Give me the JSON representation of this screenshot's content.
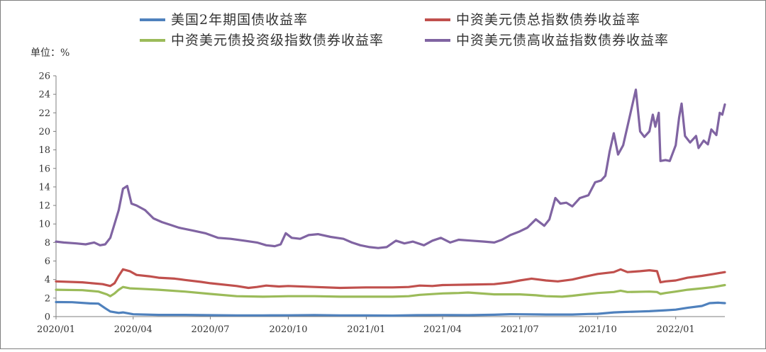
{
  "chart_data": {
    "type": "line",
    "unit_label": "单位：%",
    "ylim": [
      0,
      26
    ],
    "y_ticks": [
      "0",
      "2",
      "4",
      "6",
      "8",
      "10",
      "12",
      "14",
      "16",
      "18",
      "20",
      "22",
      "24",
      "26"
    ],
    "x_ticks": [
      "2020/01",
      "2020/04",
      "2020/07",
      "2020/10",
      "2021/01",
      "2021/04",
      "2021/07",
      "2021/10",
      "2022/01"
    ],
    "x_range": [
      "2020-01-01",
      "2022-02-28"
    ],
    "grid": false,
    "legend_position": "top",
    "series": [
      {
        "name": "美国2年期国债收益率",
        "color": "#4F81BD",
        "points": [
          [
            "2020-01-01",
            1.57
          ],
          [
            "2020-01-20",
            1.55
          ],
          [
            "2020-02-10",
            1.42
          ],
          [
            "2020-02-20",
            1.4
          ],
          [
            "2020-02-28",
            0.9
          ],
          [
            "2020-03-05",
            0.55
          ],
          [
            "2020-03-15",
            0.4
          ],
          [
            "2020-03-20",
            0.45
          ],
          [
            "2020-04-01",
            0.25
          ],
          [
            "2020-05-01",
            0.18
          ],
          [
            "2020-06-01",
            0.18
          ],
          [
            "2020-07-01",
            0.15
          ],
          [
            "2020-08-01",
            0.13
          ],
          [
            "2020-09-01",
            0.13
          ],
          [
            "2020-10-01",
            0.14
          ],
          [
            "2020-11-01",
            0.17
          ],
          [
            "2020-12-01",
            0.13
          ],
          [
            "2021-01-01",
            0.12
          ],
          [
            "2021-02-01",
            0.11
          ],
          [
            "2021-03-01",
            0.15
          ],
          [
            "2021-04-01",
            0.17
          ],
          [
            "2021-05-01",
            0.15
          ],
          [
            "2021-06-01",
            0.2
          ],
          [
            "2021-06-20",
            0.26
          ],
          [
            "2021-07-01",
            0.25
          ],
          [
            "2021-08-01",
            0.22
          ],
          [
            "2021-09-01",
            0.22
          ],
          [
            "2021-09-20",
            0.28
          ],
          [
            "2021-10-01",
            0.3
          ],
          [
            "2021-10-20",
            0.45
          ],
          [
            "2021-11-01",
            0.5
          ],
          [
            "2021-11-20",
            0.55
          ],
          [
            "2021-12-01",
            0.58
          ],
          [
            "2021-12-20",
            0.68
          ],
          [
            "2022-01-01",
            0.75
          ],
          [
            "2022-01-15",
            0.95
          ],
          [
            "2022-02-01",
            1.15
          ],
          [
            "2022-02-10",
            1.45
          ],
          [
            "2022-02-20",
            1.5
          ],
          [
            "2022-02-28",
            1.45
          ]
        ]
      },
      {
        "name": "中资美元债总指数债券收益率",
        "color": "#C0504D",
        "points": [
          [
            "2020-01-01",
            3.8
          ],
          [
            "2020-02-01",
            3.7
          ],
          [
            "2020-02-25",
            3.5
          ],
          [
            "2020-03-05",
            3.3
          ],
          [
            "2020-03-10",
            3.6
          ],
          [
            "2020-03-15",
            4.4
          ],
          [
            "2020-03-20",
            5.1
          ],
          [
            "2020-03-28",
            4.9
          ],
          [
            "2020-04-05",
            4.5
          ],
          [
            "2020-04-20",
            4.35
          ],
          [
            "2020-05-01",
            4.2
          ],
          [
            "2020-05-20",
            4.1
          ],
          [
            "2020-06-01",
            3.95
          ],
          [
            "2020-06-20",
            3.75
          ],
          [
            "2020-07-01",
            3.6
          ],
          [
            "2020-08-01",
            3.3
          ],
          [
            "2020-08-15",
            3.1
          ],
          [
            "2020-08-25",
            3.2
          ],
          [
            "2020-09-05",
            3.35
          ],
          [
            "2020-09-20",
            3.25
          ],
          [
            "2020-10-01",
            3.3
          ],
          [
            "2020-11-01",
            3.2
          ],
          [
            "2020-12-01",
            3.1
          ],
          [
            "2021-01-01",
            3.15
          ],
          [
            "2021-02-01",
            3.15
          ],
          [
            "2021-02-20",
            3.2
          ],
          [
            "2021-03-05",
            3.35
          ],
          [
            "2021-03-20",
            3.3
          ],
          [
            "2021-04-01",
            3.4
          ],
          [
            "2021-05-01",
            3.45
          ],
          [
            "2021-06-01",
            3.5
          ],
          [
            "2021-06-20",
            3.7
          ],
          [
            "2021-07-01",
            3.9
          ],
          [
            "2021-07-15",
            4.1
          ],
          [
            "2021-08-01",
            3.9
          ],
          [
            "2021-08-15",
            3.8
          ],
          [
            "2021-09-01",
            4.0
          ],
          [
            "2021-09-15",
            4.3
          ],
          [
            "2021-10-01",
            4.6
          ],
          [
            "2021-10-20",
            4.8
          ],
          [
            "2021-10-28",
            5.1
          ],
          [
            "2021-11-05",
            4.8
          ],
          [
            "2021-11-20",
            4.9
          ],
          [
            "2021-12-01",
            5.0
          ],
          [
            "2021-12-10",
            4.9
          ],
          [
            "2021-12-14",
            3.7
          ],
          [
            "2021-12-20",
            3.8
          ],
          [
            "2022-01-01",
            3.9
          ],
          [
            "2022-01-15",
            4.2
          ],
          [
            "2022-02-01",
            4.4
          ],
          [
            "2022-02-15",
            4.6
          ],
          [
            "2022-02-28",
            4.8
          ]
        ]
      },
      {
        "name": "中资美元债投资级指数债券收益率",
        "color": "#9BBB59",
        "points": [
          [
            "2020-01-01",
            2.9
          ],
          [
            "2020-02-01",
            2.85
          ],
          [
            "2020-02-20",
            2.7
          ],
          [
            "2020-03-01",
            2.4
          ],
          [
            "2020-03-05",
            2.2
          ],
          [
            "2020-03-10",
            2.5
          ],
          [
            "2020-03-15",
            2.9
          ],
          [
            "2020-03-20",
            3.2
          ],
          [
            "2020-03-28",
            3.05
          ],
          [
            "2020-04-10",
            3.0
          ],
          [
            "2020-05-01",
            2.9
          ],
          [
            "2020-06-01",
            2.7
          ],
          [
            "2020-07-01",
            2.45
          ],
          [
            "2020-08-01",
            2.2
          ],
          [
            "2020-09-01",
            2.15
          ],
          [
            "2020-10-01",
            2.2
          ],
          [
            "2020-11-01",
            2.2
          ],
          [
            "2020-12-01",
            2.15
          ],
          [
            "2021-01-01",
            2.15
          ],
          [
            "2021-02-01",
            2.15
          ],
          [
            "2021-02-20",
            2.2
          ],
          [
            "2021-03-05",
            2.35
          ],
          [
            "2021-04-01",
            2.5
          ],
          [
            "2021-04-20",
            2.55
          ],
          [
            "2021-05-01",
            2.6
          ],
          [
            "2021-06-01",
            2.4
          ],
          [
            "2021-07-01",
            2.4
          ],
          [
            "2021-07-20",
            2.3
          ],
          [
            "2021-08-01",
            2.2
          ],
          [
            "2021-08-20",
            2.15
          ],
          [
            "2021-09-01",
            2.25
          ],
          [
            "2021-09-20",
            2.45
          ],
          [
            "2021-10-01",
            2.55
          ],
          [
            "2021-10-20",
            2.65
          ],
          [
            "2021-10-28",
            2.8
          ],
          [
            "2021-11-05",
            2.65
          ],
          [
            "2021-12-01",
            2.7
          ],
          [
            "2021-12-10",
            2.65
          ],
          [
            "2021-12-14",
            2.45
          ],
          [
            "2021-12-20",
            2.55
          ],
          [
            "2022-01-01",
            2.7
          ],
          [
            "2022-01-15",
            2.9
          ],
          [
            "2022-02-01",
            3.05
          ],
          [
            "2022-02-15",
            3.2
          ],
          [
            "2022-02-28",
            3.4
          ]
        ]
      },
      {
        "name": "中资美元债高收益指数债券收益率",
        "color": "#8064A2",
        "points": [
          [
            "2020-01-01",
            8.1
          ],
          [
            "2020-01-10",
            8.0
          ],
          [
            "2020-01-25",
            7.9
          ],
          [
            "2020-02-05",
            7.8
          ],
          [
            "2020-02-15",
            8.0
          ],
          [
            "2020-02-22",
            7.7
          ],
          [
            "2020-02-28",
            7.8
          ],
          [
            "2020-03-05",
            8.5
          ],
          [
            "2020-03-10",
            10.0
          ],
          [
            "2020-03-15",
            11.5
          ],
          [
            "2020-03-20",
            13.8
          ],
          [
            "2020-03-25",
            14.1
          ],
          [
            "2020-03-30",
            12.2
          ],
          [
            "2020-04-05",
            12.0
          ],
          [
            "2020-04-15",
            11.5
          ],
          [
            "2020-04-25",
            10.6
          ],
          [
            "2020-05-05",
            10.2
          ],
          [
            "2020-05-15",
            9.9
          ],
          [
            "2020-05-25",
            9.6
          ],
          [
            "2020-06-10",
            9.3
          ],
          [
            "2020-06-25",
            9.0
          ],
          [
            "2020-07-10",
            8.5
          ],
          [
            "2020-07-25",
            8.4
          ],
          [
            "2020-08-10",
            8.2
          ],
          [
            "2020-08-25",
            8.0
          ],
          [
            "2020-09-05",
            7.7
          ],
          [
            "2020-09-15",
            7.6
          ],
          [
            "2020-09-22",
            7.8
          ],
          [
            "2020-09-28",
            9.0
          ],
          [
            "2020-10-05",
            8.5
          ],
          [
            "2020-10-15",
            8.4
          ],
          [
            "2020-10-25",
            8.8
          ],
          [
            "2020-11-05",
            8.9
          ],
          [
            "2020-11-20",
            8.6
          ],
          [
            "2020-12-05",
            8.4
          ],
          [
            "2020-12-15",
            8.0
          ],
          [
            "2020-12-25",
            7.7
          ],
          [
            "2021-01-05",
            7.5
          ],
          [
            "2021-01-15",
            7.4
          ],
          [
            "2021-01-25",
            7.5
          ],
          [
            "2021-02-05",
            8.2
          ],
          [
            "2021-02-15",
            7.9
          ],
          [
            "2021-02-25",
            8.1
          ],
          [
            "2021-03-10",
            7.7
          ],
          [
            "2021-03-20",
            8.2
          ],
          [
            "2021-03-30",
            8.5
          ],
          [
            "2021-04-10",
            8.0
          ],
          [
            "2021-04-20",
            8.3
          ],
          [
            "2021-05-05",
            8.2
          ],
          [
            "2021-05-20",
            8.1
          ],
          [
            "2021-06-01",
            8.0
          ],
          [
            "2021-06-10",
            8.3
          ],
          [
            "2021-06-20",
            8.8
          ],
          [
            "2021-07-01",
            9.2
          ],
          [
            "2021-07-10",
            9.6
          ],
          [
            "2021-07-20",
            10.5
          ],
          [
            "2021-07-30",
            9.8
          ],
          [
            "2021-08-05",
            10.5
          ],
          [
            "2021-08-12",
            12.8
          ],
          [
            "2021-08-18",
            12.2
          ],
          [
            "2021-08-25",
            12.3
          ],
          [
            "2021-09-01",
            11.9
          ],
          [
            "2021-09-10",
            12.8
          ],
          [
            "2021-09-20",
            13.1
          ],
          [
            "2021-09-28",
            14.5
          ],
          [
            "2021-10-05",
            14.7
          ],
          [
            "2021-10-10",
            15.2
          ],
          [
            "2021-10-15",
            17.8
          ],
          [
            "2021-10-20",
            19.8
          ],
          [
            "2021-10-25",
            17.5
          ],
          [
            "2021-10-31",
            18.5
          ],
          [
            "2021-11-05",
            20.5
          ],
          [
            "2021-11-10",
            22.5
          ],
          [
            "2021-11-15",
            24.5
          ],
          [
            "2021-11-20",
            20.0
          ],
          [
            "2021-11-25",
            19.4
          ],
          [
            "2021-12-01",
            20.0
          ],
          [
            "2021-12-05",
            21.8
          ],
          [
            "2021-12-08",
            20.5
          ],
          [
            "2021-12-12",
            22.0
          ],
          [
            "2021-12-14",
            16.8
          ],
          [
            "2021-12-20",
            16.9
          ],
          [
            "2021-12-25",
            16.8
          ],
          [
            "2022-01-01",
            18.5
          ],
          [
            "2022-01-05",
            21.5
          ],
          [
            "2022-01-08",
            23.0
          ],
          [
            "2022-01-12",
            19.5
          ],
          [
            "2022-01-18",
            18.8
          ],
          [
            "2022-01-25",
            19.5
          ],
          [
            "2022-01-28",
            18.2
          ],
          [
            "2022-02-03",
            19.0
          ],
          [
            "2022-02-08",
            18.6
          ],
          [
            "2022-02-12",
            20.2
          ],
          [
            "2022-02-18",
            19.6
          ],
          [
            "2022-02-22",
            22.0
          ],
          [
            "2022-02-25",
            21.8
          ],
          [
            "2022-02-28",
            22.9
          ]
        ]
      }
    ]
  }
}
